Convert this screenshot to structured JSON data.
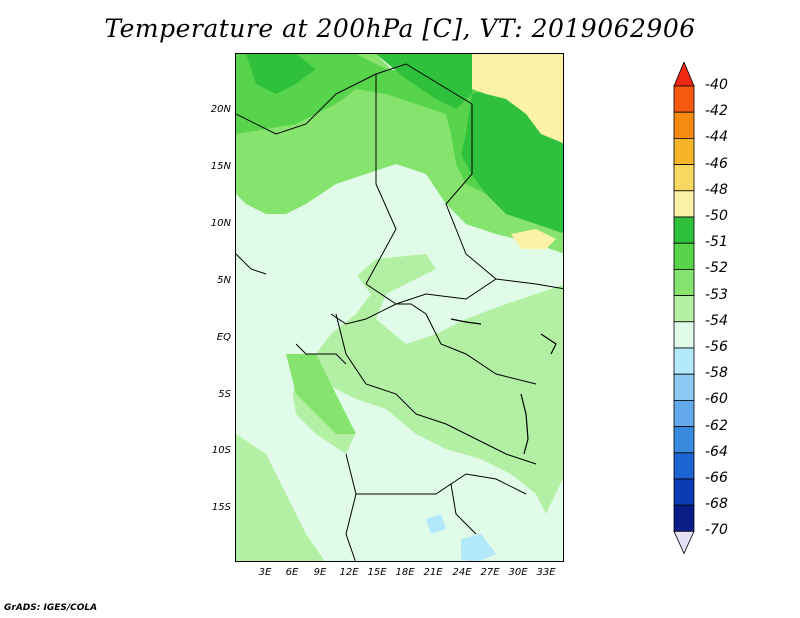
{
  "title": "Temperature at 200hPa [C], VT: 2019062906",
  "footer": "GrADS: IGES/COLA",
  "map": {
    "lat_labels": [
      "20N",
      "15N",
      "10N",
      "5N",
      "EQ",
      "5S",
      "10S",
      "15S"
    ],
    "lon_labels": [
      "3E",
      "6E",
      "9E",
      "12E",
      "15E",
      "18E",
      "21E",
      "24E",
      "27E",
      "30E",
      "33E"
    ]
  },
  "colorbar": {
    "levels": [
      "-40",
      "-42",
      "-44",
      "-46",
      "-48",
      "-50",
      "-51",
      "-52",
      "-53",
      "-54",
      "-56",
      "-58",
      "-60",
      "-62",
      "-64",
      "-66",
      "-68",
      "-70"
    ],
    "colors": [
      "#f02814",
      "#f85a10",
      "#f88c10",
      "#f8b428",
      "#f8d860",
      "#fbf2a8",
      "#2fc13c",
      "#57d44c",
      "#86e46e",
      "#b4f0a4",
      "#e0fce8",
      "#b4e8fb",
      "#8ccaf3",
      "#64aaea",
      "#3a8ae0",
      "#1c64d2",
      "#0c3cb4",
      "#0a1c86",
      "#e6e0f6"
    ]
  },
  "colors": {
    "land_light": "#e0fce8",
    "land_green1": "#b4f0a4",
    "land_green2": "#86e46e",
    "land_green3": "#57d44c",
    "land_green4": "#2fc13c",
    "yellow": "#fbf2a8",
    "blue": "#b4e8fb"
  }
}
